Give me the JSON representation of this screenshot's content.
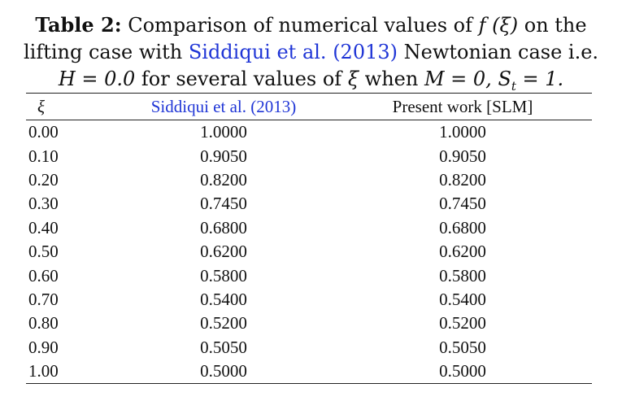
{
  "caption": {
    "label": "Table 2:",
    "text_before_link": " Comparison of numerical values of ",
    "f_xi": "f (ξ)",
    "text_on_the": " on the lifting case with ",
    "link": "Siddiqui et al. (2013)",
    "text_after_link": " Newtonian case i.e.",
    "h_eq": "H = 0.0",
    "text_mid": " for several values of ",
    "xi": "ξ",
    "text_when": " when ",
    "m_eq": "M = 0, S",
    "st_sub": "t",
    "st_eq": " = 1."
  },
  "table": {
    "headers": [
      "ξ",
      "Siddiqui et al. (2013)",
      "Present work [SLM]"
    ],
    "rows": [
      [
        "0.00",
        "1.0000",
        "1.0000"
      ],
      [
        "0.10",
        "0.9050",
        "0.9050"
      ],
      [
        "0.20",
        "0.8200",
        "0.8200"
      ],
      [
        "0.30",
        "0.7450",
        "0.7450"
      ],
      [
        "0.40",
        "0.6800",
        "0.6800"
      ],
      [
        "0.50",
        "0.6200",
        "0.6200"
      ],
      [
        "0.60",
        "0.5800",
        "0.5800"
      ],
      [
        "0.70",
        "0.5400",
        "0.5400"
      ],
      [
        "0.80",
        "0.5200",
        "0.5200"
      ],
      [
        "0.90",
        "0.5050",
        "0.5050"
      ],
      [
        "1.00",
        "0.5000",
        "0.5000"
      ]
    ]
  },
  "colors": {
    "link": "#1f35d6",
    "text": "#111111",
    "rule": "#222222"
  }
}
